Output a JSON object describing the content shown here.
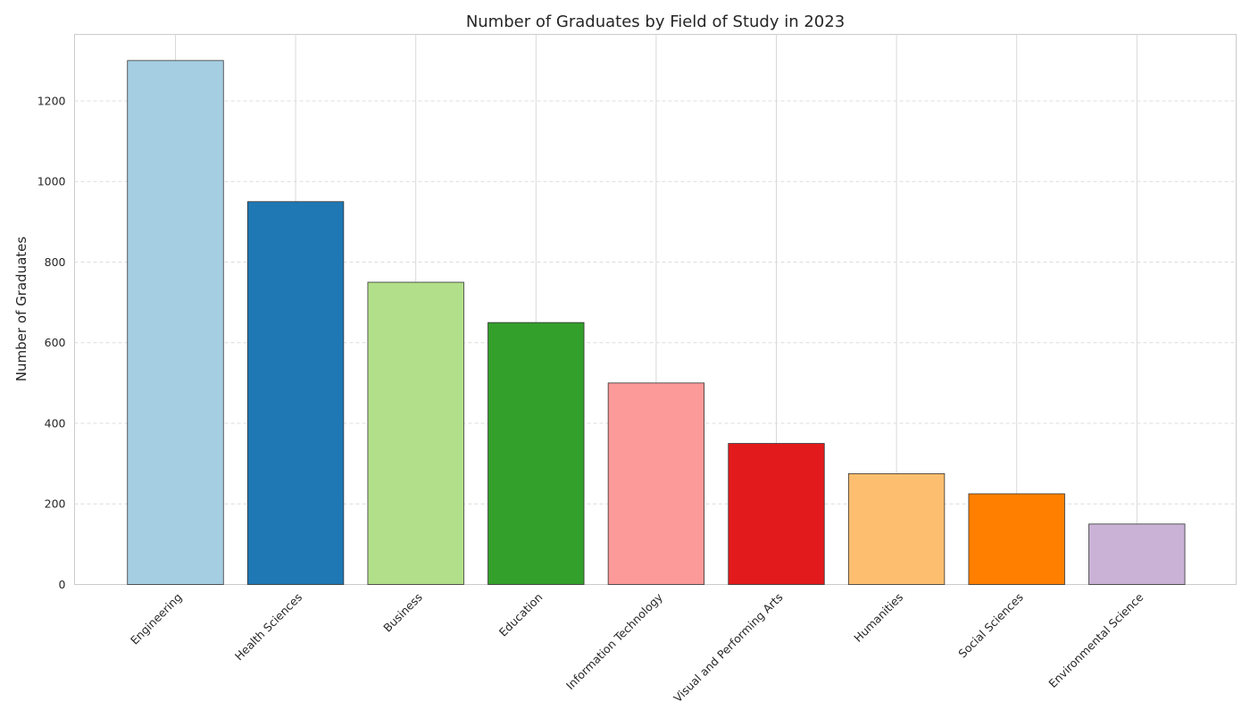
{
  "chart_data": {
    "type": "bar",
    "title": "Number of Graduates by Field of Study in 2023",
    "xlabel": "",
    "ylabel": "Number of Graduates",
    "categories": [
      "Engineering",
      "Health Sciences",
      "Business",
      "Education",
      "Information Technology",
      "Visual and Performing Arts",
      "Humanities",
      "Social Sciences",
      "Environmental Science"
    ],
    "values": [
      1300,
      950,
      750,
      650,
      500,
      350,
      275,
      225,
      150
    ],
    "colors": [
      "#a6cee3",
      "#1f78b4",
      "#b2df8a",
      "#33a02c",
      "#fb9a99",
      "#e31a1c",
      "#fdbf6f",
      "#ff7f00",
      "#cab2d6"
    ],
    "ylim": [
      0,
      1365
    ],
    "yticks": [
      0,
      200,
      400,
      600,
      800,
      1000,
      1200
    ],
    "grid": true,
    "legend": "none"
  }
}
